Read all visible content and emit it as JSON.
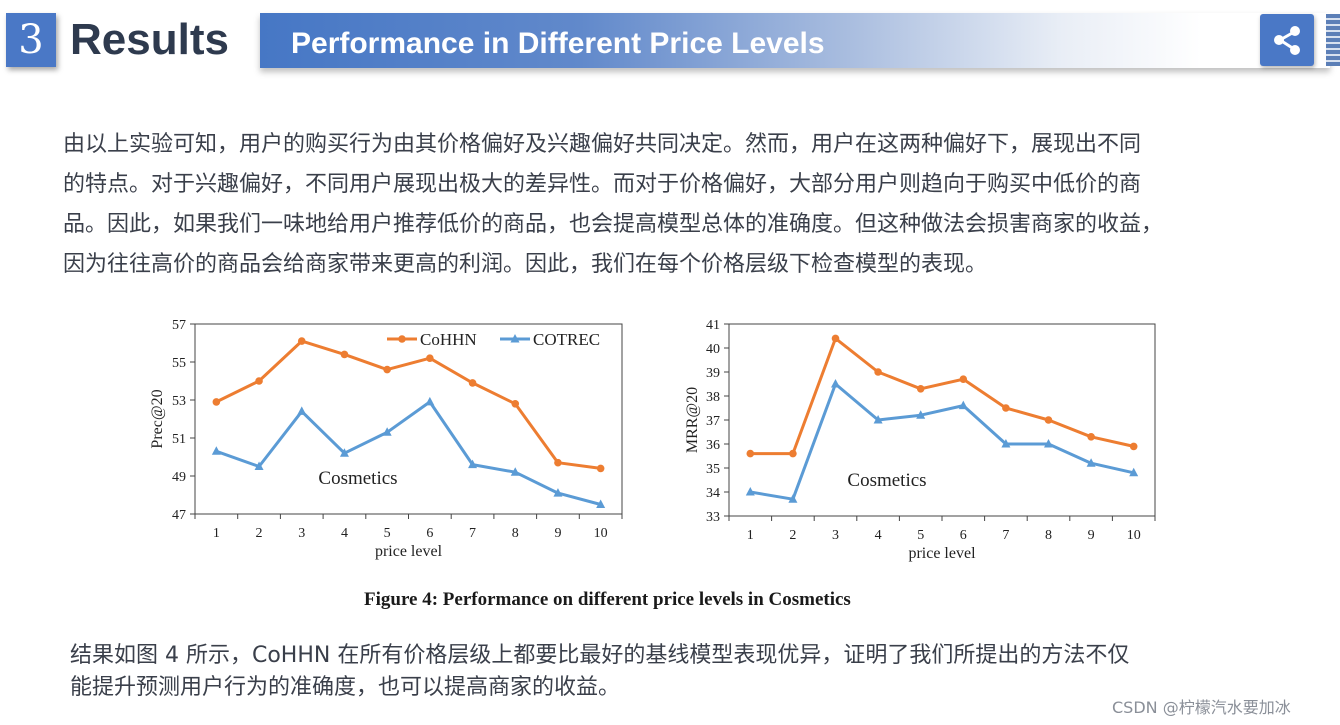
{
  "section": {
    "number": "3",
    "title": "Results"
  },
  "banner": {
    "title": "Performance in Different Price Levels"
  },
  "icons": {
    "share": "share-icon"
  },
  "paragraph1": [
    "由以上实验可知，用户的购买行为由其价格偏好及兴趣偏好共同决定。然而，用户在这两种偏好下，展现出不同",
    "的特点。对于兴趣偏好，不同用户展现出极大的差异性。而对于价格偏好，大部分用户则趋向于购买中低价的商",
    "品。因此，如果我们一味地给用户推荐低价的商品，也会提高模型总体的准确度。但这种做法会损害商家的收益，",
    "因为往往高价的商品会给商家带来更高的利润。因此，我们在每个价格层级下检查模型的表现。"
  ],
  "paragraph2": [
    "结果如图 4 所示，CoHHN 在所有价格层级上都要比最好的基线模型表现优异，证明了我们所提出的方法不仅",
    "能提升预测用户行为的准确度，也可以提高商家的收益。"
  ],
  "caption": "Figure 4: Performance on different price levels in Cosmetics",
  "watermark": "CSDN @柠檬汽水要加冰",
  "colors": {
    "cohhn": "#ed7d31",
    "cotrec": "#5b9bd5",
    "accent": "#4a78c6"
  },
  "chart_data": [
    {
      "type": "line",
      "x": [
        1,
        2,
        3,
        4,
        5,
        6,
        7,
        8,
        9,
        10
      ],
      "xlabel": "price level",
      "ylabel": "Prec@20",
      "ylim": [
        47,
        57
      ],
      "yticks": [
        47,
        49,
        51,
        53,
        55,
        57
      ],
      "annotation": "Cosmetics",
      "legend": "top-right",
      "grid": false,
      "series": [
        {
          "name": "CoHHN",
          "values": [
            52.9,
            54.0,
            56.1,
            55.4,
            54.6,
            55.2,
            53.9,
            52.8,
            49.7,
            49.4
          ]
        },
        {
          "name": "COTREC",
          "values": [
            50.3,
            49.5,
            52.4,
            50.2,
            51.3,
            52.9,
            49.6,
            49.2,
            48.1,
            47.5
          ]
        }
      ]
    },
    {
      "type": "line",
      "x": [
        1,
        2,
        3,
        4,
        5,
        6,
        7,
        8,
        9,
        10
      ],
      "xlabel": "price level",
      "ylabel": "MRR@20",
      "ylim": [
        33,
        41
      ],
      "yticks": [
        33,
        34,
        35,
        36,
        37,
        38,
        39,
        40,
        41
      ],
      "annotation": "Cosmetics",
      "grid": false,
      "series": [
        {
          "name": "CoHHN",
          "values": [
            35.6,
            35.6,
            40.4,
            39.0,
            38.3,
            38.7,
            37.5,
            37.0,
            36.3,
            35.9
          ]
        },
        {
          "name": "COTREC",
          "values": [
            34.0,
            33.7,
            38.5,
            37.0,
            37.2,
            37.6,
            36.0,
            36.0,
            35.2,
            34.8
          ]
        }
      ]
    }
  ]
}
